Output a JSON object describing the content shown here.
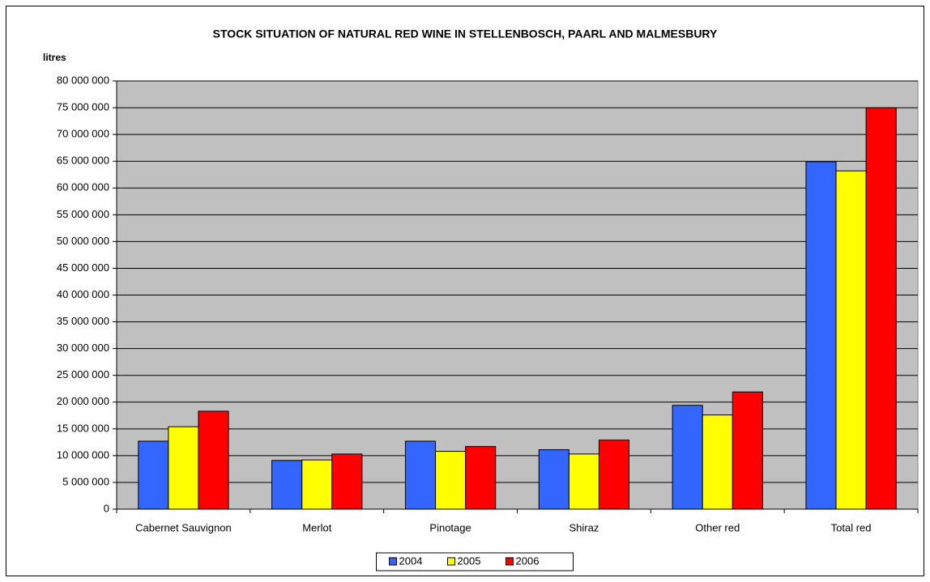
{
  "chart_data": {
    "type": "bar",
    "title": "STOCK SITUATION OF NATURAL RED WINE IN STELLENBOSCH, PAARL AND MALMESBURY",
    "y_label": "litres",
    "categories": [
      "Cabernet Sauvignon",
      "Merlot",
      "Pinotage",
      "Shiraz",
      "Other red",
      "Total red"
    ],
    "series": [
      {
        "name": "2004",
        "color": "#3366ff",
        "values": [
          12700000,
          9100000,
          12700000,
          11100000,
          19400000,
          64900000
        ]
      },
      {
        "name": "2005",
        "color": "#ffff00",
        "values": [
          15400000,
          9200000,
          10800000,
          10300000,
          17600000,
          63200000
        ]
      },
      {
        "name": "2006",
        "color": "#ff0000",
        "values": [
          18300000,
          10300000,
          11700000,
          12900000,
          21900000,
          75000000
        ]
      }
    ],
    "ylim": [
      0,
      80000000
    ],
    "yticks": [
      0,
      {
        "value": 5000000,
        "label": "5 000 000"
      },
      {
        "value": 10000000,
        "label": "10 000 000"
      },
      {
        "value": 15000000,
        "label": "15 000 000"
      },
      {
        "value": 20000000,
        "label": "20 000 000"
      },
      {
        "value": 25000000,
        "label": "25 000 000"
      },
      {
        "value": 30000000,
        "label": "30 000 000"
      },
      {
        "value": 35000000,
        "label": "35 000 000"
      },
      {
        "value": 40000000,
        "label": "40 000 000"
      },
      {
        "value": 45000000,
        "label": "45 000 000"
      },
      {
        "value": 50000000,
        "label": "50 000 000"
      },
      {
        "value": 55000000,
        "label": "55 000 000"
      },
      {
        "value": 60000000,
        "label": "60 000 000"
      },
      {
        "value": 65000000,
        "label": "65 000 000"
      },
      {
        "value": 70000000,
        "label": "70 000 000"
      },
      {
        "value": 75000000,
        "label": "75 000 000"
      },
      {
        "value": 80000000,
        "label": "80 000 000"
      }
    ],
    "grid": true,
    "legend": "bottom",
    "plot_background": "#c0c0c0"
  }
}
